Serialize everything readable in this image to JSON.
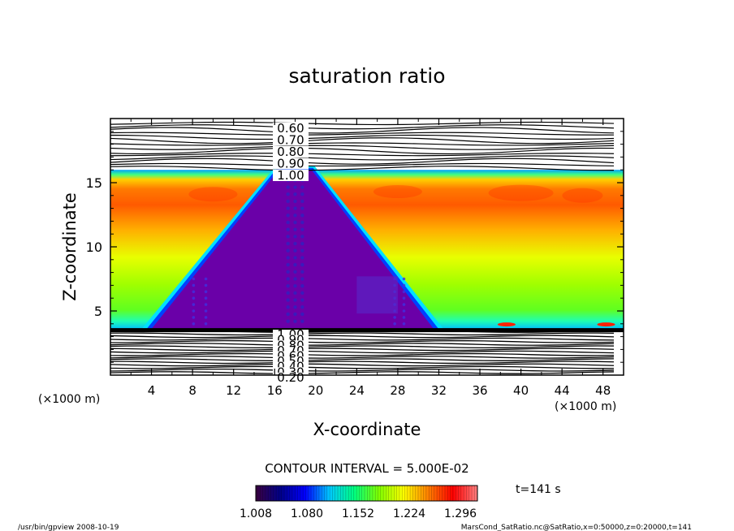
{
  "chart_data": {
    "type": "heatmap",
    "title": "saturation ratio",
    "xlabel": "X-coordinate",
    "ylabel": "Z-coordinate",
    "x_unit_left": "(×1000 m)",
    "x_unit_right": "(×1000 m)",
    "xlim": [
      0,
      50
    ],
    "ylim": [
      0,
      20
    ],
    "x_ticks": [
      4,
      8,
      12,
      16,
      20,
      24,
      28,
      32,
      36,
      40,
      44,
      48
    ],
    "y_ticks": [
      5,
      10,
      15
    ],
    "grid": false,
    "upper_contour_labels": [
      "0.60",
      "0.70",
      "0.80",
      "0.90",
      "1.00"
    ],
    "lower_contour_labels": [
      "1.00",
      "0.90",
      "0.80",
      "0.70",
      "0.60",
      "0.50",
      "0.40",
      "0.30",
      "0.20"
    ],
    "contour_interval_text": "CONTOUR INTERVAL = 5.000E-02",
    "colorbar": {
      "tick_labels": [
        "1.008",
        "1.080",
        "1.152",
        "1.224",
        "1.296"
      ],
      "min": 1.008,
      "max": 1.32,
      "colors": [
        "#3a0040",
        "#000088",
        "#0000ff",
        "#00c8ff",
        "#00ff80",
        "#80ff00",
        "#ffff00",
        "#ff8000",
        "#ff0000",
        "#ff8080"
      ]
    },
    "field": {
      "cloud_top_z": 16,
      "cloud_base_z": 3.6,
      "cloud_peak_x": 18,
      "cloud_left_base_x": 4,
      "cloud_right_base_x": 31.5,
      "max_band_z": 14
    },
    "time_label": "t=141 s"
  },
  "footer": {
    "left": "/usr/bin/gpview   2008-10-19",
    "right": "MarsCond_SatRatio.nc@SatRatio,x=0:50000,z=0:20000,t=141"
  }
}
